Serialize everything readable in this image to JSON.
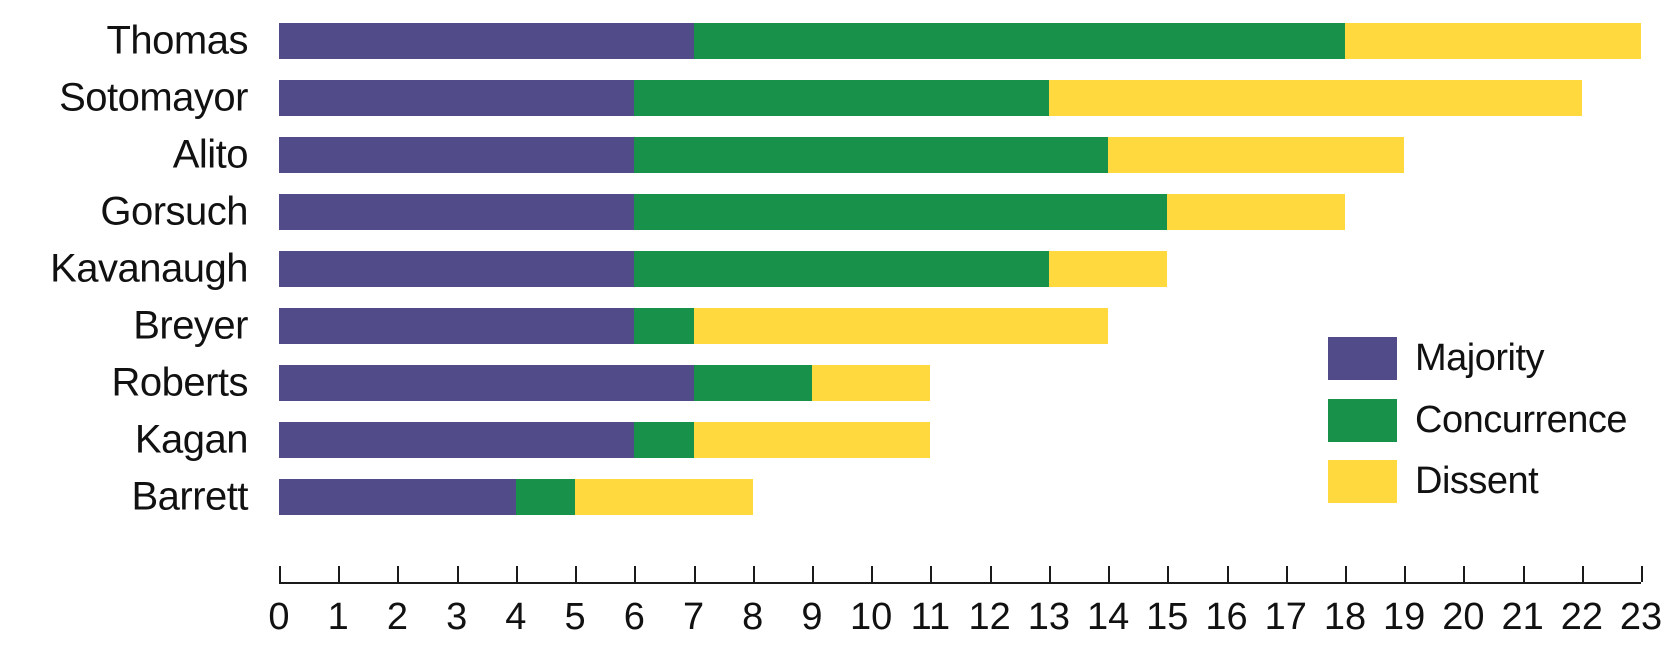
{
  "chart_data": {
    "type": "bar",
    "orientation": "horizontal",
    "stacked": true,
    "title": "",
    "xlabel": "",
    "ylabel": "",
    "grid": false,
    "categories": [
      "Thomas",
      "Sotomayor",
      "Alito",
      "Gorsuch",
      "Kavanaugh",
      "Breyer",
      "Roberts",
      "Kagan",
      "Barrett"
    ],
    "series": [
      {
        "name": "Majority",
        "color": "#514b8a",
        "values": [
          7,
          6,
          6,
          6,
          6,
          6,
          7,
          6,
          4
        ]
      },
      {
        "name": "Concurrence",
        "color": "#18914b",
        "values": [
          11,
          7,
          8,
          9,
          7,
          1,
          2,
          1,
          1
        ]
      },
      {
        "name": "Dissent",
        "color": "#ffd93d",
        "values": [
          5,
          9,
          5,
          3,
          2,
          7,
          2,
          4,
          3
        ]
      }
    ],
    "totals": [
      23,
      22,
      19,
      18,
      15,
      14,
      11,
      11,
      8
    ],
    "xlim": [
      0,
      23
    ],
    "x_ticks": [
      0,
      1,
      2,
      3,
      4,
      5,
      6,
      7,
      8,
      9,
      10,
      11,
      12,
      13,
      14,
      15,
      16,
      17,
      18,
      19,
      20,
      21,
      22,
      23
    ],
    "legend_position": "right-middle",
    "legend": [
      {
        "label": "Majority",
        "color": "#514b8a"
      },
      {
        "label": "Concurrence",
        "color": "#18914b"
      },
      {
        "label": "Dissent",
        "color": "#ffd93d"
      }
    ],
    "axis_color": "#1a1a1a",
    "text_color": "#111111"
  }
}
